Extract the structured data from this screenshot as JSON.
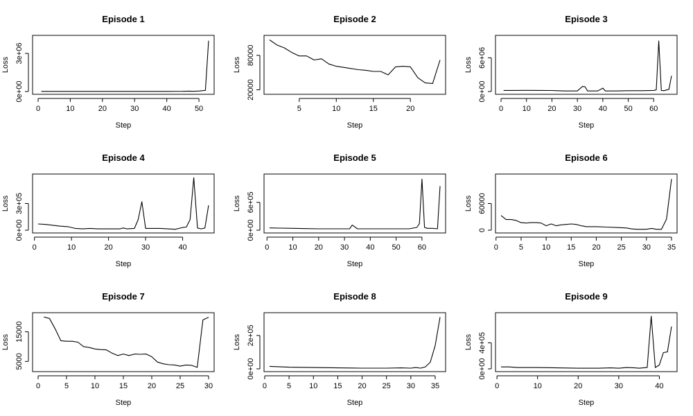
{
  "chart_data": [
    {
      "type": "line",
      "title": "Episode 1",
      "xlabel": "Step",
      "ylabel": "Loss",
      "xlim": [
        0,
        53
      ],
      "ylim": [
        0,
        4200000
      ],
      "xticks": [
        0,
        10,
        20,
        30,
        40,
        50
      ],
      "xtick_labels": [
        "0",
        "10",
        "20",
        "30",
        "40",
        "50"
      ],
      "yticks": [
        0,
        3000000
      ],
      "ytick_labels": [
        "0e+00",
        "3e+06"
      ],
      "x": [
        1,
        5,
        10,
        15,
        20,
        25,
        30,
        35,
        40,
        45,
        47,
        48,
        50,
        52,
        53
      ],
      "y": [
        10000,
        12000,
        12000,
        11000,
        12000,
        12000,
        12000,
        13000,
        12000,
        14000,
        30000,
        18000,
        40000,
        90000,
        4000000
      ]
    },
    {
      "type": "line",
      "title": "Episode 2",
      "xlabel": "Step",
      "ylabel": "Loss",
      "xlim": [
        1,
        24
      ],
      "ylim": [
        17000,
        110000
      ],
      "xticks": [
        5,
        10,
        15,
        20
      ],
      "xtick_labels": [
        "5",
        "10",
        "15",
        "20"
      ],
      "yticks": [
        20000,
        80000
      ],
      "ytick_labels": [
        "20000",
        "80000"
      ],
      "x": [
        1,
        2,
        3,
        4,
        5,
        6,
        7,
        8,
        9,
        10,
        11,
        12,
        13,
        14,
        15,
        16,
        17,
        18,
        19,
        20,
        21,
        22,
        23,
        24
      ],
      "y": [
        107000,
        98000,
        93000,
        85000,
        79000,
        79000,
        72000,
        74000,
        65000,
        61000,
        59000,
        57000,
        55000,
        54000,
        52000,
        52000,
        46000,
        60000,
        61000,
        60000,
        41000,
        32000,
        31000,
        72000
      ]
    },
    {
      "type": "line",
      "title": "Episode 3",
      "xlabel": "Step",
      "ylabel": "Loss",
      "xlim": [
        0,
        67
      ],
      "ylim": [
        0,
        9500000
      ],
      "xticks": [
        0,
        10,
        20,
        30,
        40,
        50,
        60
      ],
      "xtick_labels": [
        "0",
        "10",
        "20",
        "30",
        "40",
        "50",
        "60"
      ],
      "yticks": [
        0,
        6000000
      ],
      "ytick_labels": [
        "0e+00",
        "6e+06"
      ],
      "x": [
        1,
        5,
        10,
        15,
        20,
        22,
        25,
        30,
        32,
        33,
        34,
        35,
        38,
        40,
        41,
        42,
        45,
        50,
        55,
        60,
        61,
        62,
        63,
        64,
        66,
        67
      ],
      "y": [
        200000,
        200000,
        210000,
        200000,
        190000,
        150000,
        100000,
        100000,
        900000,
        850000,
        100000,
        100000,
        100000,
        600000,
        100000,
        100000,
        100000,
        150000,
        150000,
        200000,
        300000,
        9000000,
        200000,
        150000,
        400000,
        2800000
      ]
    },
    {
      "type": "line",
      "title": "Episode 4",
      "xlabel": "Step",
      "ylabel": "Loss",
      "xlim": [
        1,
        47
      ],
      "ylim": [
        0,
        600000
      ],
      "xticks": [
        0,
        10,
        20,
        30,
        40
      ],
      "xtick_labels": [
        "0",
        "10",
        "20",
        "30",
        "40"
      ],
      "yticks": [
        0,
        300000
      ],
      "ytick_labels": [
        "0e+00",
        "3e+05"
      ],
      "x": [
        1,
        3,
        5,
        7,
        9,
        11,
        13,
        15,
        17,
        19,
        21,
        23,
        24,
        25,
        27,
        28,
        29,
        30,
        32,
        34,
        36,
        38,
        40,
        41,
        42,
        43,
        44,
        45,
        46,
        47
      ],
      "y": [
        70000,
        65000,
        55000,
        45000,
        40000,
        20000,
        15000,
        20000,
        15000,
        15000,
        15000,
        15000,
        25000,
        15000,
        20000,
        120000,
        320000,
        20000,
        20000,
        20000,
        15000,
        10000,
        30000,
        35000,
        120000,
        590000,
        25000,
        15000,
        25000,
        280000
      ]
    },
    {
      "type": "line",
      "title": "Episode 5",
      "xlabel": "Step",
      "ylabel": "Loss",
      "xlim": [
        1,
        67
      ],
      "ylim": [
        0,
        1150000
      ],
      "xticks": [
        0,
        10,
        20,
        30,
        40,
        50,
        60
      ],
      "xtick_labels": [
        "0",
        "10",
        "20",
        "30",
        "40",
        "50",
        "60"
      ],
      "yticks": [
        0,
        600000
      ],
      "ytick_labels": [
        "0e+00",
        "6e+05"
      ],
      "x": [
        1,
        5,
        10,
        15,
        20,
        25,
        30,
        32,
        33,
        35,
        40,
        45,
        50,
        55,
        58,
        59,
        60,
        61,
        62,
        64,
        66,
        67
      ],
      "y": [
        50000,
        45000,
        40000,
        35000,
        30000,
        30000,
        30000,
        30000,
        110000,
        30000,
        30000,
        30000,
        30000,
        30000,
        60000,
        140000,
        1100000,
        60000,
        40000,
        40000,
        30000,
        950000
      ]
    },
    {
      "type": "line",
      "title": "Episode 6",
      "xlabel": "Step",
      "ylabel": "Loss",
      "xlim": [
        1,
        35
      ],
      "ylim": [
        0,
        120000
      ],
      "xticks": [
        0,
        5,
        10,
        15,
        20,
        25,
        30,
        35
      ],
      "xtick_labels": [
        "0",
        "5",
        "10",
        "15",
        "20",
        "25",
        "30",
        "35"
      ],
      "yticks": [
        0,
        60000
      ],
      "ytick_labels": [
        "0",
        "60000"
      ],
      "x": [
        1,
        2,
        3,
        4,
        5,
        6,
        7,
        8,
        9,
        10,
        11,
        12,
        13,
        14,
        15,
        16,
        17,
        18,
        20,
        22,
        24,
        26,
        27,
        28,
        29,
        30,
        31,
        32,
        33,
        34,
        35
      ],
      "y": [
        33000,
        24000,
        24000,
        22000,
        17000,
        16000,
        17000,
        17000,
        16000,
        10000,
        14000,
        10000,
        12000,
        13000,
        14000,
        13000,
        10000,
        8000,
        8000,
        7000,
        6000,
        5000,
        3000,
        2000,
        2000,
        2000,
        4000,
        2000,
        2000,
        25000,
        115000
      ]
    },
    {
      "type": "line",
      "title": "Episode 7",
      "xlabel": "Step",
      "ylabel": "Loss",
      "xlim": [
        0,
        30
      ],
      "ylim": [
        2500,
        20500
      ],
      "xticks": [
        0,
        5,
        10,
        15,
        20,
        25,
        30
      ],
      "xtick_labels": [
        "0",
        "5",
        "10",
        "15",
        "20",
        "25",
        "30"
      ],
      "yticks": [
        5000,
        15000
      ],
      "ytick_labels": [
        "5000",
        "15000"
      ],
      "x": [
        1,
        2,
        3,
        4,
        5,
        6,
        7,
        8,
        9,
        10,
        11,
        12,
        13,
        14,
        15,
        16,
        17,
        18,
        19,
        20,
        21,
        22,
        23,
        24,
        25,
        26,
        27,
        28,
        29,
        30
      ],
      "y": [
        20000,
        19500,
        16000,
        12000,
        11800,
        11800,
        11500,
        10000,
        9700,
        9200,
        9000,
        8900,
        7800,
        7000,
        7500,
        7000,
        7500,
        7400,
        7500,
        6600,
        4800,
        4200,
        3900,
        3800,
        3400,
        3800,
        3700,
        3000,
        19000,
        19900
      ]
    },
    {
      "type": "line",
      "title": "Episode 8",
      "xlabel": "Step",
      "ylabel": "Loss",
      "xlim": [
        1,
        36
      ],
      "ylim": [
        0,
        320000
      ],
      "xticks": [
        0,
        5,
        10,
        15,
        20,
        25,
        30,
        35
      ],
      "xtick_labels": [
        "0",
        "5",
        "10",
        "15",
        "20",
        "25",
        "30",
        "35"
      ],
      "yticks": [
        0,
        200000
      ],
      "ytick_labels": [
        "0e+00",
        "2e+05"
      ],
      "x": [
        1,
        5,
        10,
        15,
        20,
        25,
        28,
        30,
        31,
        32,
        33,
        34,
        35,
        36
      ],
      "y": [
        15000,
        10000,
        8000,
        6000,
        4000,
        4000,
        6000,
        4000,
        8000,
        4000,
        12000,
        40000,
        140000,
        310000
      ]
    },
    {
      "type": "line",
      "title": "Episode 9",
      "xlabel": "Step",
      "ylabel": "Loss",
      "xlim": [
        1,
        43
      ],
      "ylim": [
        0,
        820000
      ],
      "xticks": [
        0,
        10,
        20,
        30,
        40
      ],
      "xtick_labels": [
        "0",
        "10",
        "20",
        "30",
        "40"
      ],
      "yticks": [
        0,
        400000
      ],
      "ytick_labels": [
        "0e+00",
        "4e+05"
      ],
      "x": [
        1,
        3,
        5,
        10,
        15,
        20,
        25,
        28,
        30,
        32,
        34,
        35,
        36,
        37,
        38,
        39,
        40,
        41,
        42,
        43
      ],
      "y": [
        30000,
        30000,
        20000,
        20000,
        15000,
        10000,
        10000,
        15000,
        10000,
        20000,
        15000,
        10000,
        15000,
        20000,
        810000,
        20000,
        60000,
        250000,
        260000,
        650000
      ]
    }
  ]
}
